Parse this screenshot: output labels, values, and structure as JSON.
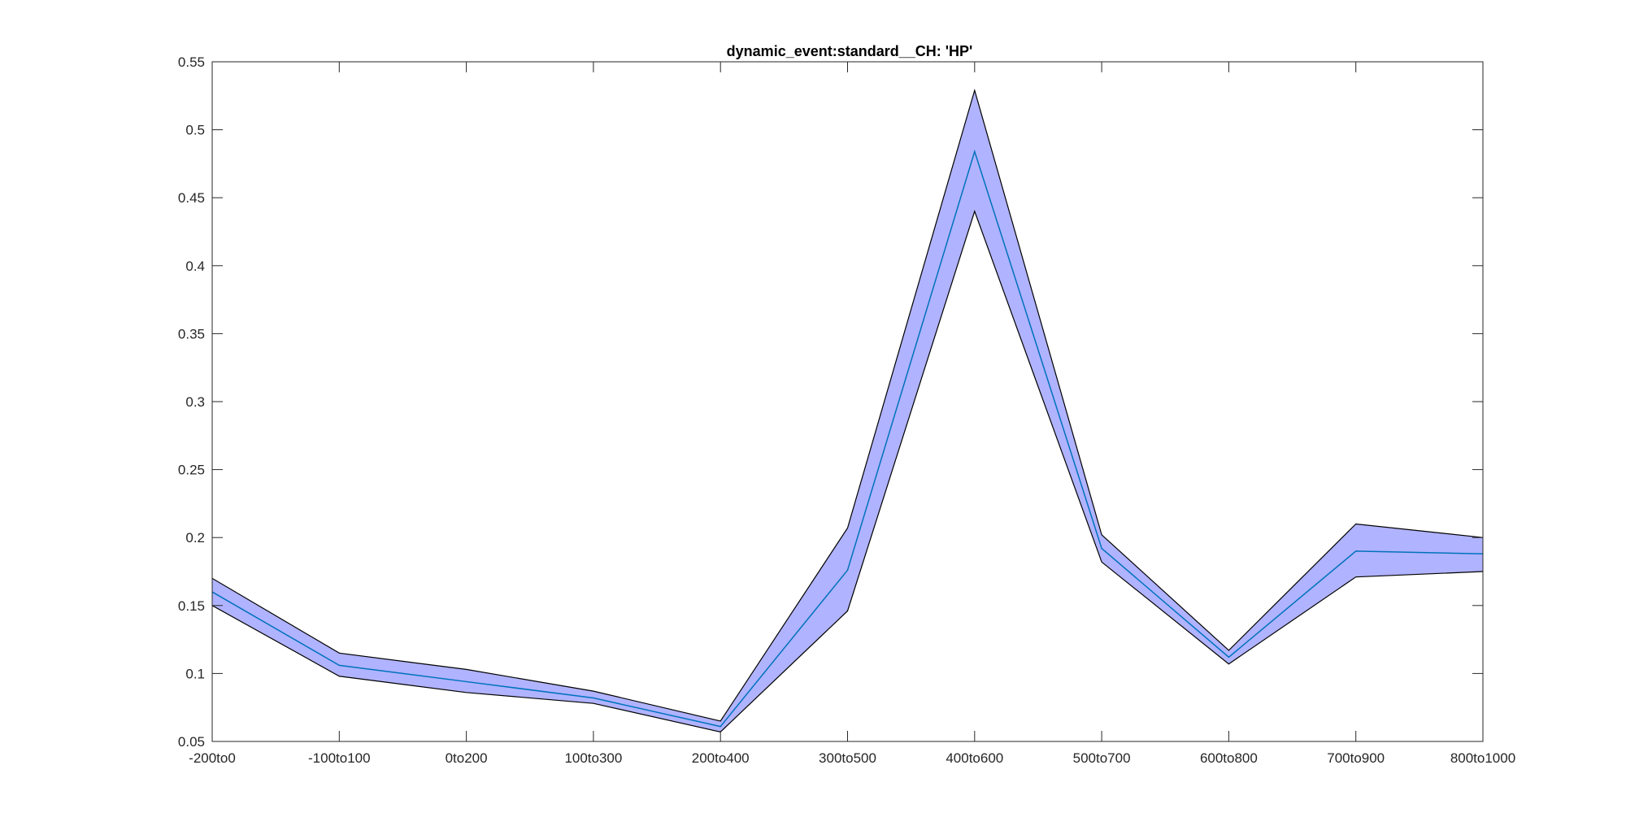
{
  "chart_data": {
    "type": "area",
    "title": "dynamic_event:standard__CH: 'HP'",
    "xlabel": "",
    "ylabel": "",
    "categories": [
      "-200to0",
      "-100to100",
      "0to200",
      "100to300",
      "200to400",
      "300to500",
      "400to600",
      "500to700",
      "600to800",
      "700to900",
      "800to1000"
    ],
    "ylim": [
      0.05,
      0.55
    ],
    "yticks": [
      0.05,
      0.1,
      0.15,
      0.2,
      0.25,
      0.3,
      0.35,
      0.4,
      0.45,
      0.5,
      0.55
    ],
    "ytick_labels": [
      "0.05",
      "0.1",
      "0.15",
      "0.2",
      "0.25",
      "0.3",
      "0.35",
      "0.4",
      "0.45",
      "0.5",
      "0.55"
    ],
    "grid": false,
    "series": [
      {
        "kind": "mean",
        "values": [
          0.16,
          0.106,
          0.094,
          0.082,
          0.061,
          0.176,
          0.484,
          0.192,
          0.112,
          0.19,
          0.188
        ],
        "color": "#0072BD"
      },
      {
        "kind": "band_upper",
        "values": [
          0.17,
          0.115,
          0.103,
          0.087,
          0.065,
          0.207,
          0.529,
          0.202,
          0.117,
          0.21,
          0.2
        ],
        "color": "#000000"
      },
      {
        "kind": "band_lower",
        "values": [
          0.15,
          0.098,
          0.086,
          0.078,
          0.057,
          0.146,
          0.44,
          0.182,
          0.107,
          0.171,
          0.175
        ],
        "color": "#000000"
      }
    ],
    "band_fill": "#B0B3FF",
    "axis_color": "#262626"
  }
}
